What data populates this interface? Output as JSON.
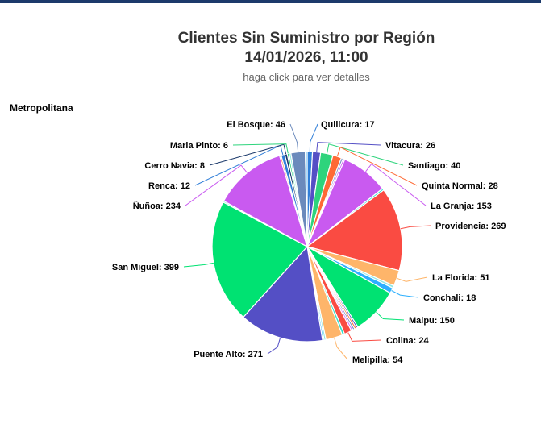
{
  "header": {
    "title_line1": "Clientes Sin Suministro por Región",
    "title_line2": "14/01/2026, 11:00",
    "subtitle": "haga click para ver detalles"
  },
  "chart_data": {
    "type": "pie",
    "region": "Metropolitana",
    "slices": [
      {
        "label": "Quilicura",
        "value": 17,
        "color": "#2f7ed8"
      },
      {
        "label": "Vitacura",
        "value": 26,
        "color": "#544fc5"
      },
      {
        "label": "Santiago",
        "value": 40,
        "color": "#2ed47c"
      },
      {
        "label": "Quinta Normal",
        "value": 28,
        "color": "#fe6a35"
      },
      {
        "label": "",
        "value": 6,
        "color": "#6b8abc"
      },
      {
        "label": "",
        "value": 6,
        "color": "#d568fb"
      },
      {
        "label": "La Granja",
        "value": 153,
        "color": "#c95af0"
      },
      {
        "label": "",
        "value": 6,
        "color": "#2ee0ca"
      },
      {
        "label": "Providencia",
        "value": 269,
        "color": "#fa4b42"
      },
      {
        "label": "La Florida",
        "value": 51,
        "color": "#feb56a"
      },
      {
        "label": "",
        "value": 8,
        "color": "#91e8e1"
      },
      {
        "label": "Conchali",
        "value": 18,
        "color": "#2caffe"
      },
      {
        "label": "Maipu",
        "value": 150,
        "color": "#00e272"
      },
      {
        "label": "",
        "value": 6,
        "color": "#544fc5"
      },
      {
        "label": "",
        "value": 6,
        "color": "#fe6a35"
      },
      {
        "label": "",
        "value": 6,
        "color": "#6b8abc"
      },
      {
        "label": "",
        "value": 6,
        "color": "#d568fb"
      },
      {
        "label": "Colina",
        "value": 24,
        "color": "#fa4b42"
      },
      {
        "label": "",
        "value": 8,
        "color": "#2ee0ca"
      },
      {
        "label": "Melipilla",
        "value": 54,
        "color": "#feb56a"
      },
      {
        "label": "",
        "value": 6,
        "color": "#91e8e1"
      },
      {
        "label": "",
        "value": 5,
        "color": "#2caffe"
      },
      {
        "label": "Puente Alto",
        "value": 271,
        "color": "#544fc5"
      },
      {
        "label": "San Miguel",
        "value": 399,
        "color": "#00e272"
      },
      {
        "label": "",
        "value": 4,
        "color": "#2ee0ca"
      },
      {
        "label": "Ñuñoa",
        "value": 234,
        "color": "#c95af0"
      },
      {
        "label": "",
        "value": 5,
        "color": "#fe6a35"
      },
      {
        "label": "Renca",
        "value": 12,
        "color": "#2f7ed8"
      },
      {
        "label": "Cerro Navia",
        "value": 8,
        "color": "#1c3a6b"
      },
      {
        "label": "Maria Pinto",
        "value": 6,
        "color": "#2ed47c"
      },
      {
        "label": "",
        "value": 6,
        "color": "#91e8e1"
      },
      {
        "label": "El Bosque",
        "value": 46,
        "color": "#6b8abc"
      },
      {
        "label": "",
        "value": 6,
        "color": "#2caffe"
      }
    ]
  }
}
